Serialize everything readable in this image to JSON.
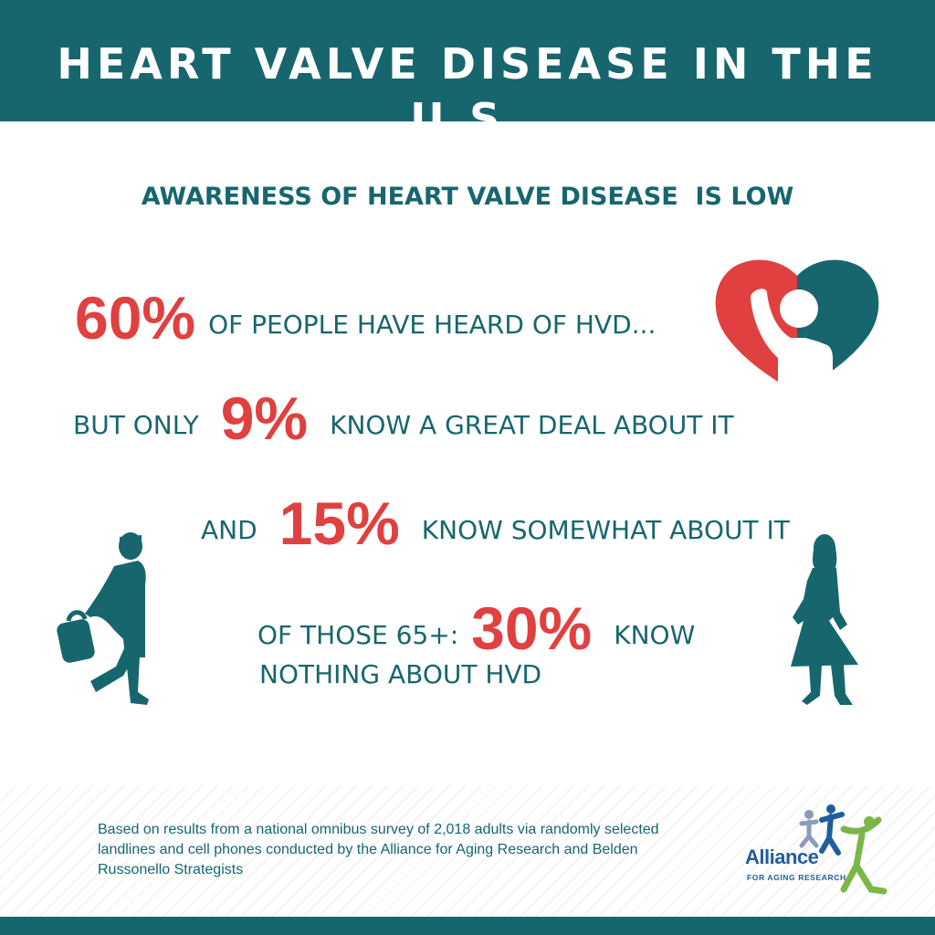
{
  "header": {
    "title": "HEART VALVE DISEASE IN THE U.S."
  },
  "subtitle": "AWARENESS OF HEART VALVE DISEASE  IS LOW",
  "stats": {
    "line1": {
      "value": "60%",
      "text": "OF PEOPLE HAVE HEARD OF HVD..."
    },
    "line2": {
      "prefix": "BUT ONLY",
      "value": "9%",
      "text": "KNOW A GREAT DEAL ABOUT IT"
    },
    "line3": {
      "prefix": "AND",
      "value": "15%",
      "text": "KNOW SOMEWHAT ABOUT IT"
    },
    "line4": {
      "prefix": "OF THOSE 65+:",
      "value": "30%",
      "text": "KNOW"
    },
    "line5": {
      "text": "NOTHING ABOUT HVD"
    }
  },
  "footer": {
    "note": "Based on results from a national omnibus survey of 2,018 adults via randomly selected landlines and cell phones conducted by the Alliance for Aging Research and Belden Russonello Strategists",
    "logo_name": "Alliance",
    "logo_sub": "FOR AGING RESEARCH"
  },
  "icons": {
    "heart": "heart-person-icon",
    "man": "walking-man-icon",
    "woman": "walking-woman-icon",
    "logo": "alliance-logo-icon"
  },
  "colors": {
    "teal": "#17666e",
    "red": "#e0403f",
    "logo_blue": "#1f5e9c",
    "logo_green": "#7ab648"
  }
}
